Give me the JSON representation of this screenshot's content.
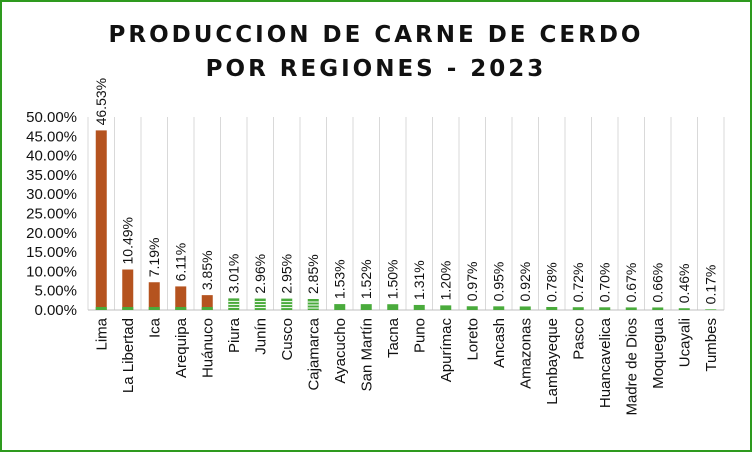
{
  "chart_data": {
    "type": "bar",
    "title_lines": [
      "PRODUCCION DE CARNE DE CERDO",
      "POR REGIONES - 2023"
    ],
    "categories": [
      "Lima",
      "La Libertad",
      "Ica",
      "Arequipa",
      "Huánuco",
      "Piura",
      "Junín",
      "Cusco",
      "Cajamarca",
      "Ayacucho",
      "San Martín",
      "Tacna",
      "Puno",
      "Apurímac",
      "Loreto",
      "Ancash",
      "Amazonas",
      "Lambayeque",
      "Pasco",
      "Huancavelica",
      "Madre de Dios",
      "Moquegua",
      "Ucayali",
      "Tumbes"
    ],
    "values": [
      46.53,
      10.49,
      7.19,
      6.11,
      3.85,
      3.01,
      2.96,
      2.95,
      2.85,
      1.53,
      1.52,
      1.5,
      1.31,
      1.2,
      0.97,
      0.95,
      0.92,
      0.78,
      0.72,
      0.7,
      0.67,
      0.66,
      0.46,
      0.17
    ],
    "data_labels": [
      "46.53%",
      "10.49%",
      "7.19%",
      "6.11%",
      "3.85%",
      "3.01%",
      "2.96%",
      "2.95%",
      "2.85%",
      "1.53%",
      "1.52%",
      "1.50%",
      "1.31%",
      "1.20%",
      "0.97%",
      "0.95%",
      "0.92%",
      "0.78%",
      "0.72%",
      "0.70%",
      "0.67%",
      "0.66%",
      "0.46%",
      "0.17%"
    ],
    "y_ticks": [
      "0.00%",
      "5.00%",
      "10.00%",
      "15.00%",
      "20.00%",
      "25.00%",
      "30.00%",
      "35.00%",
      "40.00%",
      "45.00%",
      "50.00%"
    ],
    "ylim": [
      0,
      50
    ],
    "grid": "vertical separators",
    "colors": {
      "top_regions": "#b5531f",
      "other_regions": "#4aab3c",
      "frame": "#2e9a1e"
    }
  }
}
